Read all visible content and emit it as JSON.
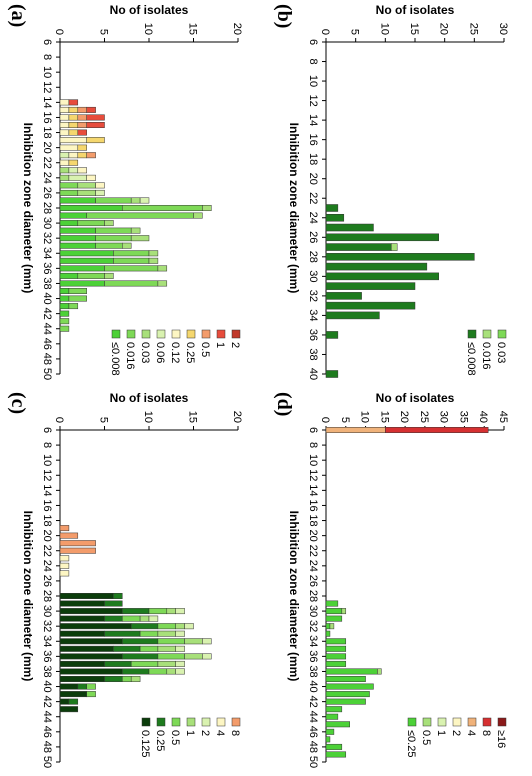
{
  "chart_data": [
    {
      "panel": "(a)",
      "type": "bar",
      "stacked": true,
      "xlabel": "Inhibition zone diameter (mm)",
      "ylabel": "No of isolates",
      "ylim": [
        0,
        20
      ],
      "yticks": [
        0,
        5,
        10,
        15,
        20
      ],
      "xticks": [
        6,
        8,
        10,
        12,
        14,
        16,
        18,
        20,
        22,
        24,
        26,
        28,
        30,
        32,
        34,
        36,
        38,
        40,
        42,
        44,
        46,
        48,
        50
      ],
      "legend_position": "top-right",
      "x": [
        13,
        14,
        15,
        16,
        17,
        18,
        19,
        20,
        21,
        22,
        23,
        24,
        25,
        26,
        27,
        28,
        29,
        30,
        31,
        32,
        33,
        34,
        35,
        36,
        37,
        38,
        39,
        40,
        41,
        42,
        43,
        44
      ],
      "series": [
        {
          "name": "2",
          "color": "#c0392b",
          "values": [
            0,
            0,
            0,
            0,
            0,
            0,
            0,
            0,
            0,
            0,
            0,
            0,
            0,
            0,
            0,
            0,
            0,
            0,
            0,
            0,
            0,
            0,
            0,
            0,
            0,
            0,
            0,
            0,
            0,
            0,
            0,
            0
          ]
        },
        {
          "name": "1",
          "color": "#e74c3c",
          "values": [
            0,
            1,
            1,
            2,
            2,
            1,
            0,
            0,
            0,
            0,
            0,
            0,
            0,
            0,
            0,
            0,
            0,
            0,
            0,
            0,
            0,
            0,
            0,
            0,
            0,
            0,
            0,
            0,
            0,
            0,
            0,
            0
          ]
        },
        {
          "name": "0.5",
          "color": "#f39c6b",
          "values": [
            0,
            0,
            1,
            1,
            1,
            0,
            0,
            0,
            1,
            0,
            0,
            0,
            0,
            0,
            0,
            0,
            0,
            0,
            0,
            0,
            0,
            0,
            0,
            0,
            0,
            0,
            0,
            0,
            0,
            0,
            0,
            0
          ]
        },
        {
          "name": "0.25",
          "color": "#f5d76e",
          "values": [
            0,
            0,
            1,
            1,
            1,
            1,
            2,
            1,
            1,
            1,
            0,
            0,
            0,
            0,
            0,
            0,
            0,
            0,
            0,
            0,
            0,
            0,
            0,
            0,
            0,
            0,
            0,
            0,
            0,
            0,
            0,
            0
          ]
        },
        {
          "name": "0.12",
          "color": "#fdf6c3",
          "values": [
            0,
            1,
            1,
            1,
            1,
            1,
            3,
            2,
            1,
            1,
            1,
            1,
            1,
            0,
            0,
            0,
            0,
            0,
            0,
            0,
            0,
            0,
            0,
            0,
            0,
            0,
            0,
            0,
            0,
            0,
            0,
            0
          ]
        },
        {
          "name": "0.06",
          "color": "#d9f2b0",
          "values": [
            0,
            0,
            0,
            0,
            0,
            0,
            0,
            0,
            1,
            0,
            1,
            2,
            0,
            1,
            1,
            0,
            0,
            0,
            0,
            0,
            0,
            0,
            0,
            0,
            0,
            0,
            0,
            0,
            0,
            0,
            0,
            0
          ]
        },
        {
          "name": "0.03",
          "color": "#a8e07a",
          "values": [
            0,
            0,
            0,
            0,
            0,
            0,
            0,
            0,
            0,
            0,
            1,
            1,
            2,
            2,
            1,
            1,
            1,
            1,
            1,
            2,
            1,
            1,
            1,
            1,
            1,
            1,
            0,
            0,
            0,
            0,
            0,
            0
          ]
        },
        {
          "name": "0.016",
          "color": "#7ed957",
          "values": [
            0,
            0,
            0,
            0,
            0,
            0,
            0,
            0,
            0,
            0,
            0,
            0,
            2,
            2,
            4,
            9,
            12,
            3,
            4,
            4,
            3,
            4,
            4,
            6,
            3,
            6,
            2,
            2,
            1,
            0,
            1,
            1
          ]
        },
        {
          "name": "≤0.008",
          "color": "#4cd137",
          "values": [
            0,
            0,
            0,
            0,
            0,
            0,
            0,
            0,
            0,
            0,
            0,
            0,
            0,
            0,
            4,
            7,
            3,
            2,
            4,
            4,
            4,
            6,
            6,
            5,
            2,
            5,
            1,
            1,
            1,
            1,
            0,
            0
          ]
        }
      ]
    },
    {
      "panel": "(b)",
      "type": "bar",
      "stacked": true,
      "xlabel": "Inhibition zone diameter (mm)",
      "ylabel": "No of isolates",
      "ylim": [
        0,
        30
      ],
      "yticks": [
        0,
        5,
        10,
        15,
        20,
        25,
        30
      ],
      "xticks": [
        6,
        8,
        10,
        12,
        14,
        16,
        18,
        20,
        22,
        24,
        26,
        28,
        30,
        32,
        34,
        36,
        38,
        40
      ],
      "legend_position": "top-right",
      "x": [
        23,
        24,
        25,
        26,
        27,
        28,
        29,
        30,
        31,
        32,
        33,
        34,
        35,
        36,
        37,
        38,
        39,
        40
      ],
      "series": [
        {
          "name": "0.03",
          "color": "#7ed957",
          "values": [
            0,
            0,
            0,
            0,
            0,
            0,
            0,
            0,
            0,
            0,
            0,
            0,
            0,
            0,
            0,
            0,
            0,
            0
          ]
        },
        {
          "name": "0.016",
          "color": "#a8e07a",
          "values": [
            0,
            0,
            0,
            0,
            1,
            0,
            0,
            0,
            0,
            0,
            0,
            0,
            0,
            0,
            0,
            0,
            0,
            0
          ]
        },
        {
          "name": "≤0.008",
          "color": "#1e7b1e",
          "values": [
            2,
            3,
            8,
            19,
            11,
            25,
            17,
            19,
            15,
            6,
            15,
            9,
            0,
            2,
            0,
            0,
            0,
            2
          ]
        }
      ]
    },
    {
      "panel": "(c)",
      "type": "bar",
      "stacked": true,
      "xlabel": "Inhibition zone diameter (mm)",
      "ylabel": "No of isolates",
      "ylim": [
        0,
        20
      ],
      "yticks": [
        0,
        5,
        10,
        15,
        20
      ],
      "xticks": [
        6,
        8,
        10,
        12,
        14,
        16,
        18,
        20,
        22,
        24,
        26,
        28,
        30,
        32,
        34,
        36,
        38,
        40,
        42,
        44,
        46,
        48,
        50
      ],
      "legend_position": "top-right",
      "x": [
        19,
        20,
        21,
        22,
        23,
        24,
        25,
        26,
        27,
        28,
        29,
        30,
        31,
        32,
        33,
        34,
        35,
        36,
        37,
        38,
        39,
        40,
        41,
        42,
        43
      ],
      "series": [
        {
          "name": "8",
          "color": "#f39c6b",
          "values": [
            1,
            2,
            4,
            4,
            0,
            0,
            0,
            0,
            0,
            0,
            0,
            0,
            0,
            0,
            0,
            0,
            0,
            0,
            0,
            0,
            0,
            0,
            0,
            0,
            0
          ]
        },
        {
          "name": "4",
          "color": "#fdf6c3",
          "values": [
            0,
            0,
            0,
            0,
            1,
            1,
            1,
            0,
            0,
            0,
            0,
            0,
            0,
            0,
            0,
            0,
            0,
            0,
            0,
            0,
            0,
            0,
            0,
            0,
            0
          ]
        },
        {
          "name": "2",
          "color": "#d9f2b0",
          "values": [
            0,
            0,
            0,
            0,
            0,
            0,
            0,
            0,
            0,
            0,
            0,
            1,
            1,
            1,
            1,
            1,
            1,
            1,
            1,
            1,
            0,
            0,
            0,
            0,
            0
          ]
        },
        {
          "name": "1",
          "color": "#a8e07a",
          "values": [
            0,
            0,
            0,
            0,
            0,
            0,
            0,
            0,
            0,
            0,
            0,
            1,
            1,
            1,
            2,
            2,
            2,
            2,
            2,
            1,
            1,
            0,
            0,
            0,
            0
          ]
        },
        {
          "name": "0.5",
          "color": "#7ed957",
          "values": [
            0,
            0,
            0,
            0,
            0,
            0,
            0,
            0,
            0,
            0,
            0,
            2,
            2,
            2,
            2,
            3,
            2,
            3,
            3,
            2,
            1,
            1,
            1,
            0,
            0
          ]
        },
        {
          "name": "0.25",
          "color": "#1e7b1e",
          "values": [
            0,
            0,
            0,
            0,
            0,
            0,
            0,
            0,
            0,
            1,
            2,
            3,
            2,
            3,
            4,
            4,
            3,
            4,
            3,
            3,
            2,
            1,
            0,
            1,
            0
          ]
        },
        {
          "name": "0.125",
          "color": "#0b3d0b",
          "values": [
            0,
            0,
            0,
            0,
            0,
            0,
            0,
            0,
            0,
            6,
            5,
            7,
            5,
            8,
            5,
            7,
            6,
            7,
            5,
            7,
            5,
            2,
            3,
            1,
            2
          ]
        }
      ]
    },
    {
      "panel": "(d)",
      "type": "bar",
      "stacked": true,
      "xlabel": "Inhibition zone diameter (mm)",
      "ylabel": "No of isolates",
      "ylim": [
        0,
        45
      ],
      "yticks": [
        0,
        5,
        10,
        15,
        20,
        25,
        30,
        35,
        40,
        45
      ],
      "xticks": [
        6,
        8,
        10,
        12,
        14,
        16,
        18,
        20,
        22,
        24,
        26,
        28,
        30,
        32,
        34,
        36,
        38,
        40,
        42,
        44,
        46,
        48,
        50
      ],
      "legend_position": "top-right",
      "x": [
        6,
        29,
        30,
        31,
        32,
        33,
        34,
        35,
        36,
        37,
        38,
        39,
        40,
        41,
        42,
        43,
        44,
        45,
        46,
        47,
        48,
        49
      ],
      "series": [
        {
          "name": "≥16",
          "color": "#8b1a1a",
          "values": [
            0,
            0,
            0,
            0,
            0,
            0,
            0,
            0,
            0,
            0,
            0,
            0,
            0,
            0,
            0,
            0,
            0,
            0,
            0,
            0,
            0,
            0
          ]
        },
        {
          "name": "8",
          "color": "#d63031",
          "values": [
            26,
            0,
            0,
            0,
            0,
            0,
            0,
            0,
            0,
            0,
            0,
            0,
            0,
            0,
            0,
            0,
            0,
            0,
            0,
            0,
            0,
            0
          ]
        },
        {
          "name": "4",
          "color": "#f0b27a",
          "values": [
            15,
            0,
            0,
            0,
            0,
            0,
            0,
            0,
            0,
            0,
            0,
            0,
            0,
            0,
            0,
            0,
            0,
            0,
            0,
            0,
            0,
            0
          ]
        },
        {
          "name": "2",
          "color": "#fdf6c3",
          "values": [
            0,
            0,
            0,
            0,
            0,
            0,
            0,
            0,
            0,
            0,
            0,
            0,
            0,
            0,
            0,
            0,
            0,
            0,
            0,
            0,
            0,
            0
          ]
        },
        {
          "name": "1",
          "color": "#d9f2b0",
          "values": [
            0,
            0,
            0,
            0,
            0,
            0,
            0,
            0,
            0,
            0,
            0,
            0,
            0,
            0,
            0,
            0,
            0,
            0,
            0,
            0,
            0,
            0
          ]
        },
        {
          "name": "0.5",
          "color": "#a8e07a",
          "values": [
            0,
            0,
            1,
            0,
            1,
            0,
            0,
            0,
            0,
            0,
            1,
            0,
            0,
            0,
            0,
            0,
            0,
            0,
            0,
            0,
            0,
            0
          ]
        },
        {
          "name": "≤0.25",
          "color": "#4cd137",
          "values": [
            0,
            3,
            4,
            4,
            1,
            1,
            5,
            5,
            5,
            5,
            13,
            10,
            12,
            11,
            10,
            4,
            3,
            6,
            2,
            1,
            4,
            5
          ]
        }
      ]
    }
  ]
}
